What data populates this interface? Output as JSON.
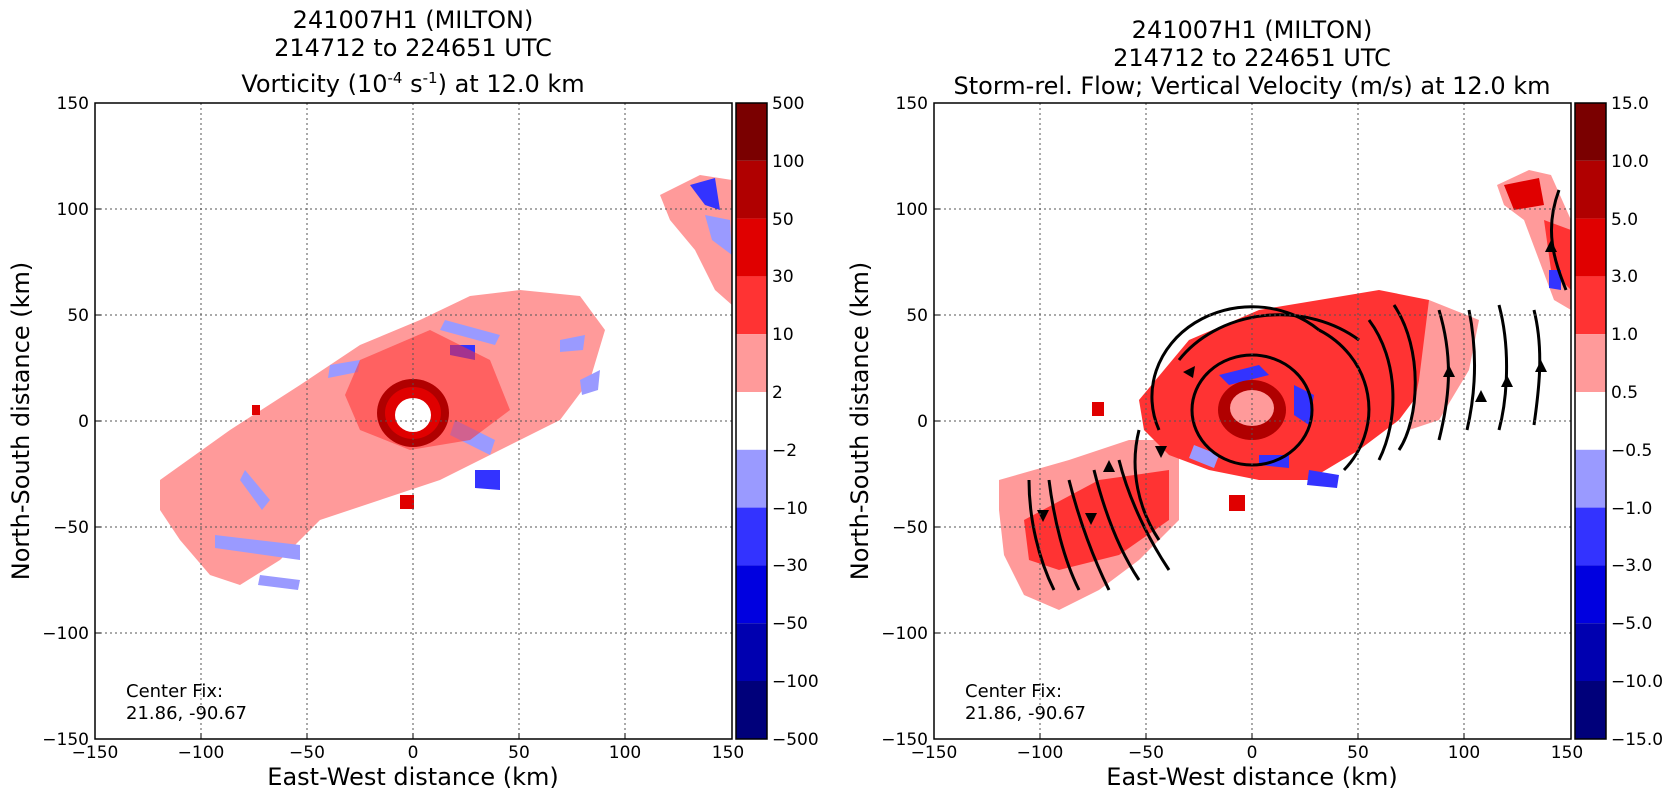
{
  "charts": [
    {
      "id": "left",
      "title_lines": [
        "241007H1 (MILTON)",
        "214712 to 224651 UTC"
      ],
      "subtitle_parts": {
        "prefix": "Vorticity (10",
        "exp1": "-4",
        "mid": " s",
        "exp2": "-1",
        "suffix": ") at 12.0 km"
      },
      "annotation": [
        "Center Fix:",
        "21.86, -90.67"
      ],
      "colorbar_labels": [
        "500",
        "100",
        "50",
        "30",
        "10",
        "2",
        "−2",
        "−10",
        "−30",
        "−50",
        "−100",
        "−500"
      ]
    },
    {
      "id": "right",
      "title_lines": [
        "241007H1 (MILTON)",
        "214712 to 224651 UTC"
      ],
      "subtitle_parts": {
        "prefix": "Storm-rel. Flow; Vertical Velocity (m/s) at 12.0 km",
        "exp1": "",
        "mid": "",
        "exp2": "",
        "suffix": ""
      },
      "annotation": [
        "Center Fix:",
        "21.86, -90.67"
      ],
      "colorbar_labels": [
        "15.0",
        "10.0",
        "5.0",
        "3.0",
        "1.0",
        "0.5",
        "−0.5",
        "−1.0",
        "−3.0",
        "−5.0",
        "−10.0",
        "−15.0"
      ]
    }
  ],
  "chart_data": [
    {
      "type": "heatmap",
      "title": "241007H1 (MILTON) 214712 to 224651 UTC Vorticity (10^-4 s^-1) at 12.0 km",
      "xlabel": "East-West distance (km)",
      "ylabel": "North-South distance (km)",
      "xlim": [
        -150,
        150
      ],
      "ylim": [
        -150,
        150
      ],
      "xticks": [
        "−150",
        "−100",
        "−50",
        "0",
        "50",
        "100",
        "150"
      ],
      "yticks": [
        "150",
        "100",
        "50",
        "0",
        "−50",
        "−100",
        "−150"
      ],
      "grid": true,
      "colorbar_levels": [
        -500,
        -100,
        -50,
        -30,
        -10,
        -2,
        2,
        10,
        30,
        50,
        100,
        500
      ],
      "colorbar_colors": [
        "#7a0000",
        "#b00000",
        "#e00000",
        "#ff3333",
        "#ff9a9a",
        "#ffffff",
        "#9a9aff",
        "#3333ff",
        "#0000e0",
        "#0000b0",
        "#00007a"
      ],
      "center_fix": [
        21.86,
        -90.67
      ]
    },
    {
      "type": "heatmap",
      "title": "241007H1 (MILTON) 214712 to 224651 UTC Storm-rel. Flow; Vertical Velocity (m/s) at 12.0 km",
      "xlabel": "East-West distance (km)",
      "ylabel": "North-South distance (km)",
      "xlim": [
        -150,
        150
      ],
      "ylim": [
        -150,
        150
      ],
      "xticks": [
        "−150",
        "−100",
        "−50",
        "0",
        "50",
        "100",
        "150"
      ],
      "yticks": [
        "150",
        "100",
        "50",
        "0",
        "−50",
        "−100",
        "−150"
      ],
      "grid": true,
      "colorbar_levels": [
        -15.0,
        -10.0,
        -5.0,
        -3.0,
        -1.0,
        -0.5,
        0.5,
        1.0,
        3.0,
        5.0,
        10.0,
        15.0
      ],
      "colorbar_colors": [
        "#7a0000",
        "#b00000",
        "#e00000",
        "#ff3333",
        "#ff9a9a",
        "#ffffff",
        "#9a9aff",
        "#3333ff",
        "#0000e0",
        "#0000b0",
        "#00007a"
      ],
      "center_fix": [
        21.86,
        -90.67
      ]
    }
  ]
}
